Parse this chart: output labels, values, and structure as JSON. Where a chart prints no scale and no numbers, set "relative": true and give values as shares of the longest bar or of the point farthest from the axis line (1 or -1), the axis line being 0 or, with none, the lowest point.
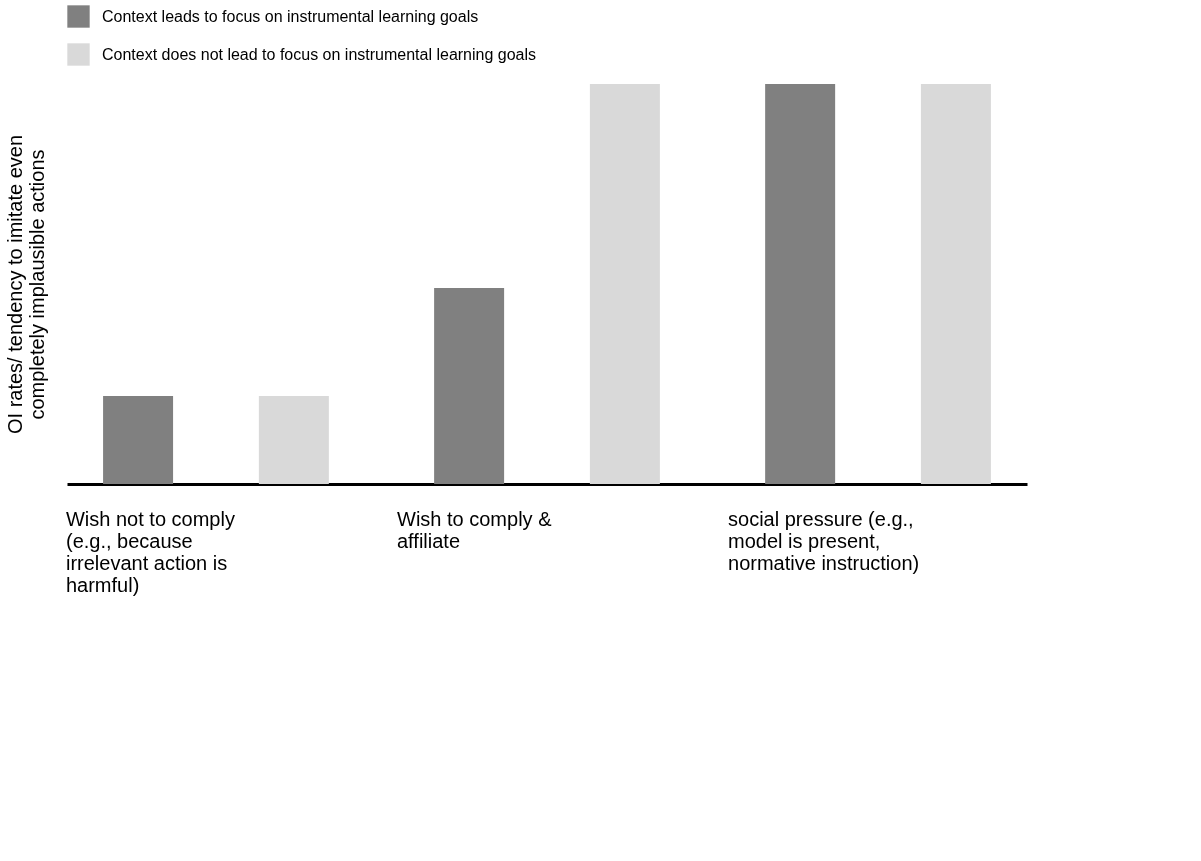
{
  "chart_data": {
    "type": "bar",
    "relative": true,
    "ylabel": "OI rates/ tendency to imitate even completely implausible actions",
    "categories": [
      "Wish not to comply (e.g., because irrelevant action is harmful)",
      "Wish to comply & affiliate",
      "social pressure (e.g., model is present, normative instruction)"
    ],
    "series": [
      {
        "name": "Context leads to focus on instrumental learning goals",
        "color": "#808080",
        "values": [
          0.22,
          0.49,
          1.0
        ]
      },
      {
        "name": "Context does not lead to focus on instrumental learning goals",
        "color": "#d9d9d9",
        "values": [
          0.22,
          1.0,
          1.0
        ]
      }
    ],
    "legend": "top",
    "grid": false
  }
}
